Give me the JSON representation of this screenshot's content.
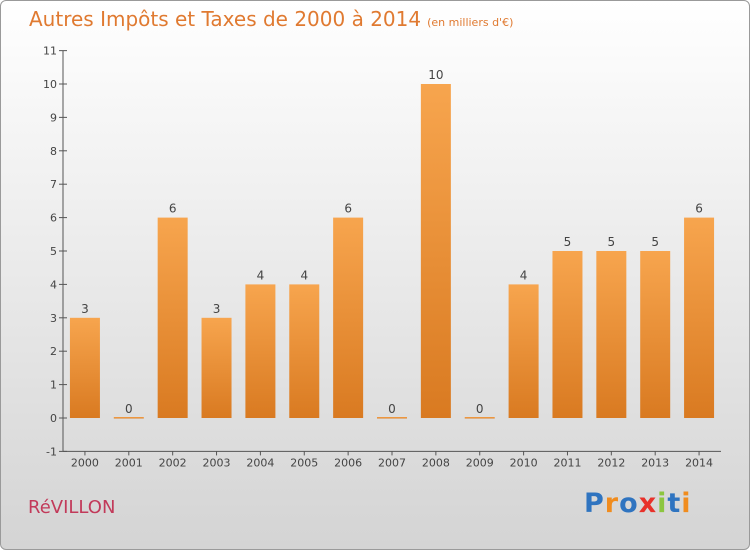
{
  "header": {
    "title": "Autres Impôts et Taxes de 2000 à 2014",
    "unit": "(en milliers d'€)"
  },
  "footer": {
    "commune": "RéVILLON",
    "brand_letters": [
      {
        "char": "P",
        "color": "#2f74c0"
      },
      {
        "char": "r",
        "color": "#f08c1e"
      },
      {
        "char": "o",
        "color": "#2f74c0"
      },
      {
        "char": "x",
        "color": "#e8312a"
      },
      {
        "char": "i",
        "color": "#8cc63f"
      },
      {
        "char": "t",
        "color": "#2f74c0"
      },
      {
        "char": "i",
        "color": "#f08c1e"
      }
    ]
  },
  "chart_data": {
    "type": "bar",
    "categories": [
      "2000",
      "2001",
      "2002",
      "2003",
      "2004",
      "2005",
      "2006",
      "2007",
      "2008",
      "2009",
      "2010",
      "2011",
      "2012",
      "2013",
      "2014"
    ],
    "values": [
      3,
      0,
      6,
      3,
      4,
      4,
      6,
      0,
      10,
      0,
      4,
      5,
      5,
      5,
      6
    ],
    "ylim": [
      -1,
      11
    ],
    "yticks": [
      "-1",
      "0",
      "1",
      "2",
      "3",
      "4",
      "5",
      "6",
      "7",
      "8",
      "9",
      "10",
      "11"
    ],
    "grid": false,
    "bar_color_top": "#f7a54e",
    "bar_color_bottom": "#d97a21"
  }
}
